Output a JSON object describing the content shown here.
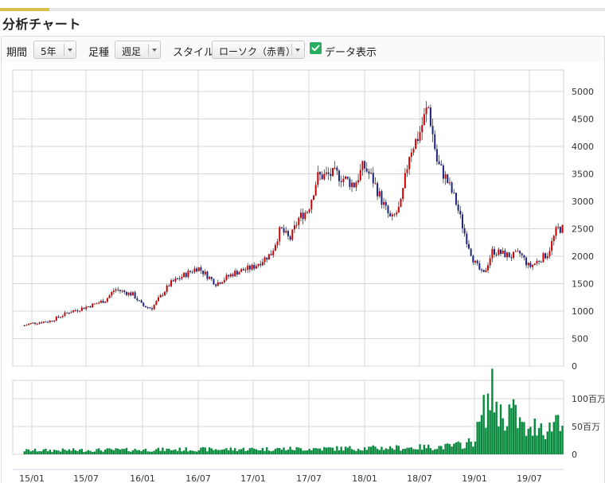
{
  "page": {
    "title": "分析チャート"
  },
  "toolbar": {
    "period_label": "期間",
    "period_value": "5年",
    "interval_label": "足種",
    "interval_value": "週足",
    "style_label": "スタイル",
    "style_value": "ローソク（赤青）",
    "data_display_label": "データ表示",
    "data_display_checked": true
  },
  "chart_data": {
    "type": "candlestick",
    "interval": "weekly",
    "price_axis": {
      "ticks": [
        0,
        500,
        1000,
        1500,
        2000,
        2500,
        3000,
        3500,
        4000,
        4500,
        5000
      ],
      "range": [
        0,
        5000
      ]
    },
    "volume_axis": {
      "ticks": [
        0,
        50,
        100
      ],
      "tick_labels": [
        "0",
        "50百万",
        "100百万"
      ],
      "unit": "百万",
      "range": [
        0,
        110
      ]
    },
    "x_axis": {
      "tick_labels": [
        "15/01",
        "15/07",
        "16/01",
        "16/07",
        "17/01",
        "17/07",
        "18/01",
        "18/07",
        "19/01",
        "19/07"
      ]
    },
    "grid": true,
    "colors": {
      "up": "#cc0000",
      "down": "#1a237e",
      "volume": "#0a8a3e",
      "grid": "#d8d8d8"
    },
    "price_path": [
      [
        "14/12",
        730
      ],
      [
        "15/01",
        780
      ],
      [
        "15/03",
        820
      ],
      [
        "15/05",
        980
      ],
      [
        "15/07",
        1080
      ],
      [
        "15/09",
        1200
      ],
      [
        "15/10",
        1400
      ],
      [
        "15/12",
        1300
      ],
      [
        "16/01",
        1100
      ],
      [
        "16/02",
        1050
      ],
      [
        "16/04",
        1500
      ],
      [
        "16/06",
        1700
      ],
      [
        "16/07",
        1800
      ],
      [
        "16/09",
        1500
      ],
      [
        "16/11",
        1700
      ],
      [
        "17/01",
        1800
      ],
      [
        "17/03",
        2050
      ],
      [
        "17/04",
        2500
      ],
      [
        "17/05",
        2300
      ],
      [
        "17/06",
        2700
      ],
      [
        "17/07",
        2850
      ],
      [
        "17/08",
        3450
      ],
      [
        "17/10",
        3500
      ],
      [
        "17/12",
        3300
      ],
      [
        "18/01",
        3650
      ],
      [
        "18/02",
        3400
      ],
      [
        "18/03",
        3000
      ],
      [
        "18/04",
        2650
      ],
      [
        "18/05",
        2900
      ],
      [
        "18/06",
        3900
      ],
      [
        "18/07",
        4200
      ],
      [
        "18/08",
        4750
      ],
      [
        "18/09",
        3700
      ],
      [
        "18/10",
        3400
      ],
      [
        "18/11",
        3000
      ],
      [
        "18/12",
        2400
      ],
      [
        "19/01",
        1900
      ],
      [
        "19/02",
        1650
      ],
      [
        "19/03",
        2100
      ],
      [
        "19/05",
        2000
      ],
      [
        "19/06",
        2050
      ],
      [
        "19/07",
        1800
      ],
      [
        "19/09",
        2050
      ],
      [
        "19/10",
        2500
      ]
    ],
    "volume_path": [
      [
        "14/12",
        7
      ],
      [
        "17/06",
        10
      ],
      [
        "18/06",
        12
      ],
      [
        "18/10",
        14
      ],
      [
        "18/12",
        18
      ],
      [
        "19/01",
        25
      ],
      [
        "19/02",
        75
      ],
      [
        "19/03",
        110
      ],
      [
        "19/04",
        65
      ],
      [
        "19/05",
        80
      ],
      [
        "19/06",
        55
      ],
      [
        "19/07",
        35
      ],
      [
        "19/08",
        60
      ],
      [
        "19/09",
        40
      ],
      [
        "19/10",
        70
      ]
    ]
  }
}
